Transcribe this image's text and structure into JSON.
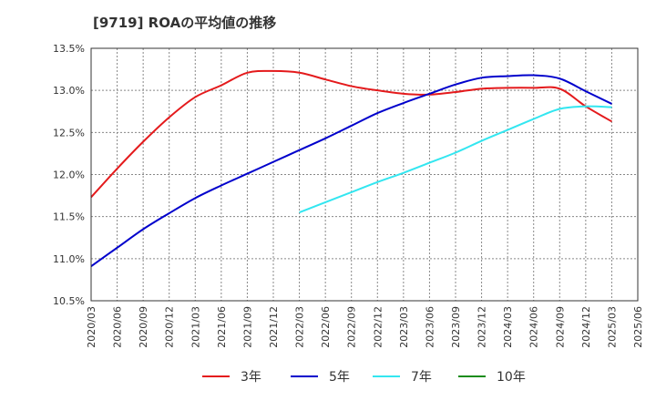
{
  "chart_data": {
    "type": "line",
    "title": "[9719]  ROAの平均値の推移",
    "xlabel": "",
    "ylabel": "",
    "ylim": [
      10.5,
      13.5
    ],
    "y_ticks": [
      "10.5%",
      "11.0%",
      "11.5%",
      "12.0%",
      "12.5%",
      "13.0%",
      "13.5%"
    ],
    "x_ticks": [
      "2020/03",
      "2020/06",
      "2020/09",
      "2020/12",
      "2021/03",
      "2021/06",
      "2021/09",
      "2021/12",
      "2022/03",
      "2022/06",
      "2022/09",
      "2022/12",
      "2023/03",
      "2023/06",
      "2023/09",
      "2023/12",
      "2024/03",
      "2024/06",
      "2024/09",
      "2024/12",
      "2025/03",
      "2025/06"
    ],
    "grid": true,
    "legend_position": "bottom",
    "x": [
      "2020/03",
      "2020/06",
      "2020/09",
      "2020/12",
      "2021/03",
      "2021/06",
      "2021/09",
      "2021/12",
      "2022/03",
      "2022/06",
      "2022/09",
      "2022/12",
      "2023/03",
      "2023/06",
      "2023/09",
      "2023/12",
      "2024/03",
      "2024/06",
      "2024/09",
      "2024/12",
      "2025/03"
    ],
    "series": [
      {
        "name": "3年",
        "color": "#e41a1c",
        "values": [
          11.73,
          12.07,
          12.39,
          12.68,
          12.92,
          13.06,
          13.21,
          13.23,
          13.21,
          13.13,
          13.05,
          13.0,
          12.96,
          12.95,
          12.98,
          13.02,
          13.03,
          13.03,
          13.02,
          12.81,
          12.63
        ]
      },
      {
        "name": "5年",
        "color": "#0000cc",
        "values": [
          10.91,
          11.13,
          11.35,
          11.54,
          11.72,
          11.87,
          12.01,
          12.15,
          12.29,
          12.43,
          12.58,
          12.73,
          12.85,
          12.96,
          13.07,
          13.15,
          13.17,
          13.18,
          13.14,
          12.99,
          12.84
        ]
      },
      {
        "name": "7年",
        "color": "#33e6f0",
        "values": [
          null,
          null,
          null,
          null,
          null,
          null,
          null,
          null,
          11.55,
          11.67,
          11.79,
          11.91,
          12.02,
          12.14,
          12.26,
          12.4,
          12.53,
          12.66,
          12.78,
          12.81,
          12.8
        ]
      },
      {
        "name": "10年",
        "color": "#1a8c1a",
        "values": [
          null,
          null,
          null,
          null,
          null,
          null,
          null,
          null,
          null,
          null,
          null,
          null,
          null,
          null,
          null,
          null,
          null,
          null,
          null,
          null,
          null
        ]
      }
    ]
  }
}
